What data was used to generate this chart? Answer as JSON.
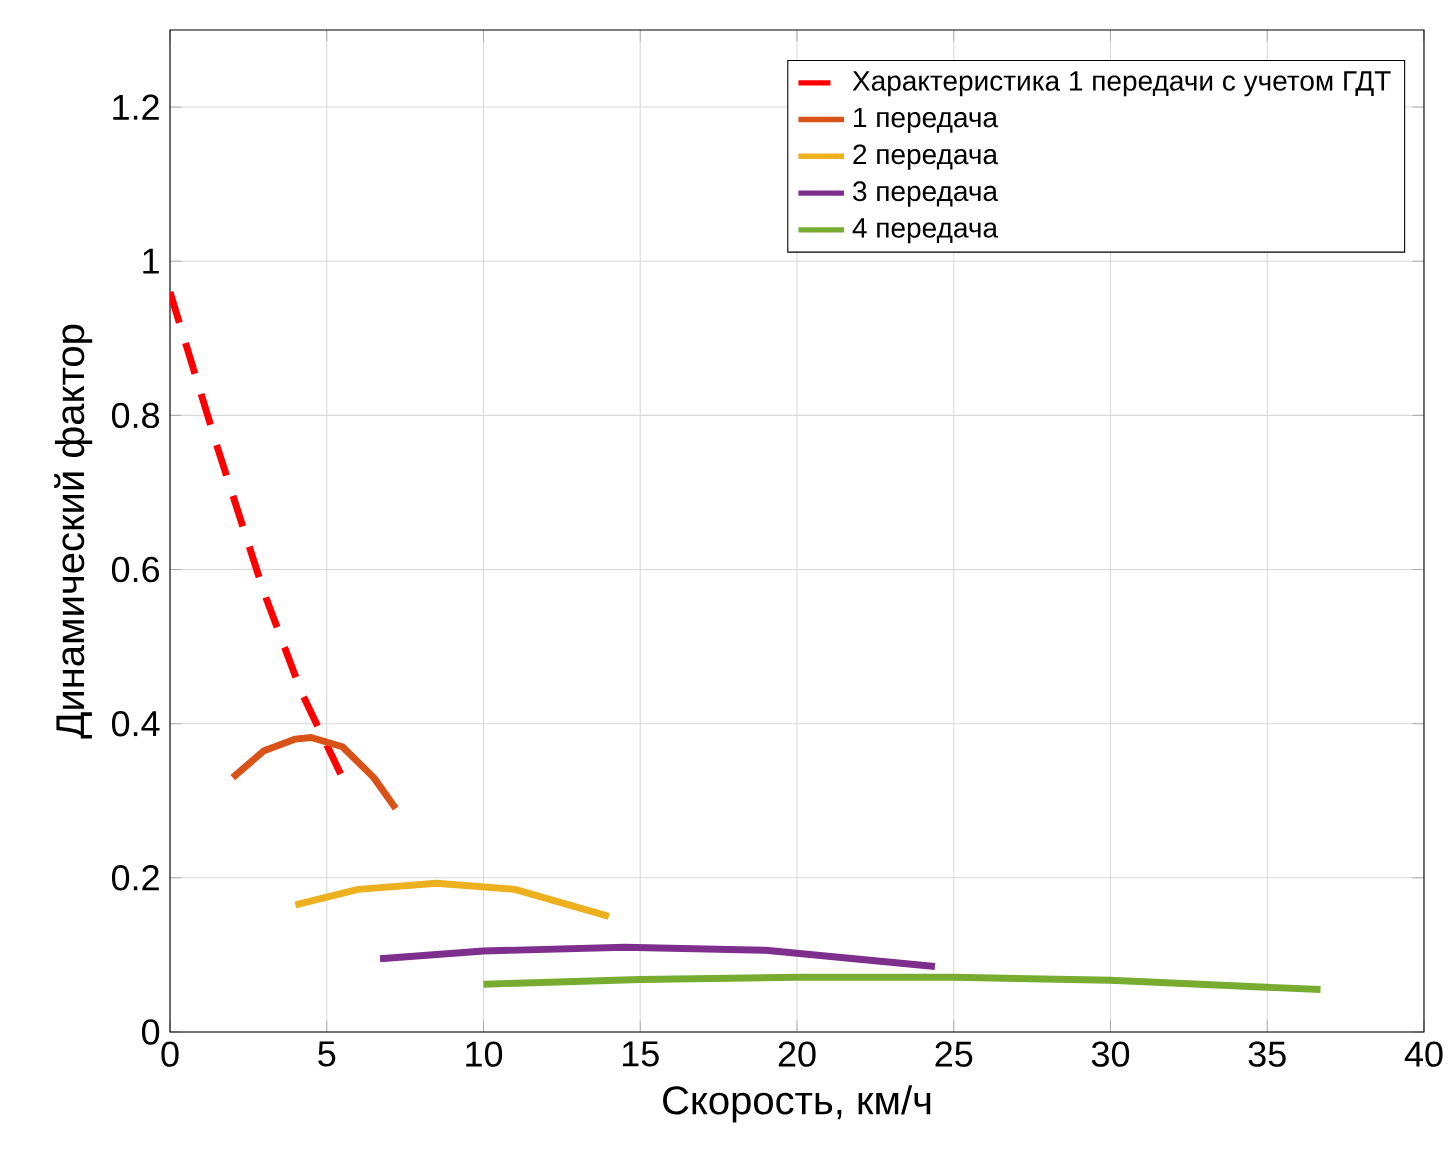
{
  "chart_data": {
    "type": "line",
    "xlabel": "Скорость, км/ч",
    "ylabel": "Динамический фактор",
    "xlim": [
      0,
      40
    ],
    "ylim": [
      0,
      1.3
    ],
    "xticks": [
      0,
      5,
      10,
      15,
      20,
      25,
      30,
      35,
      40
    ],
    "yticks": [
      0,
      0.2,
      0.4,
      0.6,
      0.8,
      1,
      1.2
    ],
    "grid": true,
    "legend": "top right",
    "marker": "none",
    "series": [
      {
        "name": "Характеристика 1 передачи с учетом ГДТ",
        "color": "#ff0000",
        "line_style": "dashed",
        "x": [
          0,
          1.5,
          3,
          4.2,
          5.5
        ],
        "values": [
          0.96,
          0.76,
          0.57,
          0.44,
          0.33
        ]
      },
      {
        "name": "1 передача",
        "color": "#d95319",
        "x": [
          2,
          3,
          4,
          4.5,
          5.5,
          6.5,
          7.2
        ],
        "values": [
          0.33,
          0.365,
          0.38,
          0.382,
          0.37,
          0.33,
          0.29
        ]
      },
      {
        "name": "2 передача",
        "color": "#edb120",
        "x": [
          4,
          6,
          8.5,
          11,
          14
        ],
        "values": [
          0.165,
          0.185,
          0.193,
          0.185,
          0.15
        ]
      },
      {
        "name": "3 передача",
        "color": "#7e2f8e",
        "x": [
          6.7,
          10,
          14.5,
          19,
          24.4
        ],
        "values": [
          0.095,
          0.105,
          0.11,
          0.106,
          0.085
        ]
      },
      {
        "name": "4 передача",
        "color": "#77ac30",
        "x": [
          10,
          15,
          20,
          25,
          30,
          36.7
        ],
        "values": [
          0.062,
          0.068,
          0.071,
          0.071,
          0.067,
          0.055
        ]
      }
    ]
  }
}
